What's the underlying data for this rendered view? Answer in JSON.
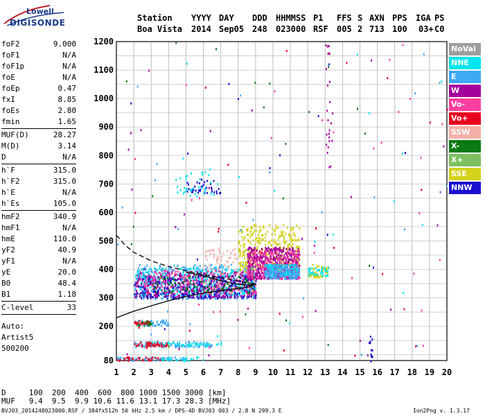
{
  "logo": {
    "line1": "Lowell",
    "line2": "DIGISONDE"
  },
  "header": {
    "labels": [
      "Station",
      "YYYY",
      "DAY",
      "DDD",
      "HHMMSS",
      "P1",
      "FFS",
      "S",
      "AXN",
      "PPS",
      "IGA",
      "PS"
    ],
    "values": [
      "Boa Vista",
      "2014",
      "Sep05",
      "248",
      "023000",
      "RSF",
      "005",
      "2",
      "713",
      "100",
      "03+",
      "C0"
    ]
  },
  "params": [
    {
      "name": "foF2",
      "value": "9.000"
    },
    {
      "name": "foF1",
      "value": "N/A"
    },
    {
      "name": "foF1p",
      "value": "N/A"
    },
    {
      "name": "foE",
      "value": "N/A"
    },
    {
      "name": "foEp",
      "value": "0.47"
    },
    {
      "name": "fxI",
      "value": "8.85"
    },
    {
      "name": "foEs",
      "value": "2.80"
    },
    {
      "name": "fmin",
      "value": "1.65"
    },
    {
      "name": "MUF(D)",
      "value": "28.27"
    },
    {
      "name": "M(D)",
      "value": "3.14"
    },
    {
      "name": "D",
      "value": "N/A"
    },
    {
      "name": "h`F",
      "value": "315.0"
    },
    {
      "name": "h`F2",
      "value": "315.0"
    },
    {
      "name": "h`E",
      "value": "N/A"
    },
    {
      "name": "h`Es",
      "value": "105.0"
    },
    {
      "name": "hmF2",
      "value": "340.9"
    },
    {
      "name": "hmF1",
      "value": "N/A"
    },
    {
      "name": "hmE",
      "value": "110.0"
    },
    {
      "name": "yF2",
      "value": "40.9"
    },
    {
      "name": "yF1",
      "value": "N/A"
    },
    {
      "name": "yE",
      "value": "20.0"
    },
    {
      "name": "B0",
      "value": "48.4"
    },
    {
      "name": "B1",
      "value": "1.18"
    },
    {
      "name": "C-level",
      "value": "33"
    }
  ],
  "autoscale": {
    "line1": "Auto:",
    "line2": "Artist5",
    "line3": "500200"
  },
  "legend": [
    {
      "label": "NoVal",
      "color": "#9e9e9e"
    },
    {
      "label": "NNE",
      "color": "#00e5ee"
    },
    {
      "label": "E",
      "color": "#3fa9f5"
    },
    {
      "label": "W",
      "color": "#a5009e"
    },
    {
      "label": "Vo-",
      "color": "#ff3fa0"
    },
    {
      "label": "Vo+",
      "color": "#e8001e"
    },
    {
      "label": "SSW",
      "color": "#f4b0a8"
    },
    {
      "label": "X-",
      "color": "#0a7a12"
    },
    {
      "label": "X+",
      "color": "#7cc060"
    },
    {
      "label": "SSE",
      "color": "#d4d21a"
    },
    {
      "label": "NNW",
      "color": "#1a10d0"
    }
  ],
  "footer": {
    "d_row": "D     100  200  400  600  800 1000 1500 3000 [km]",
    "muf_row": "MUF   9.4  9.5  9.9 10.6 11.6 13.1 17.3 28.3 [MHz]",
    "file": "BVJ03_2014248023000.RSF / 384fx512h 50 kHz 2.5 km / DPS-4D BVJ03 003 / 2.8 N 299.3 E",
    "version": "Ion2Png v. 1.3.17"
  },
  "chart_data": {
    "type": "scatter",
    "xlim": [
      1,
      20
    ],
    "ylim": [
      80,
      1200
    ],
    "x_ticks": [
      1,
      2,
      3,
      4,
      5,
      6,
      7,
      8,
      9,
      10,
      11,
      12,
      13,
      14,
      15,
      16,
      17,
      18,
      19,
      20
    ],
    "y_ticks": [
      80,
      200,
      300,
      400,
      500,
      600,
      700,
      800,
      900,
      1000,
      1100,
      1200
    ],
    "grid": true,
    "legend_position": "right",
    "profile_solid": {
      "x": [
        1.0,
        1.5,
        2.0,
        3.0,
        4.0,
        5.0,
        6.0,
        7.0,
        8.0,
        8.6,
        9.0
      ],
      "y": [
        230,
        242,
        253,
        272,
        290,
        305,
        317,
        325,
        333,
        338,
        350
      ]
    },
    "profile_dashed": {
      "x": [
        1.0,
        1.5,
        2.0,
        3.0,
        4.0,
        5.0,
        6.0,
        7.0,
        8.0,
        8.5,
        9.0
      ],
      "y": [
        520,
        485,
        460,
        430,
        410,
        395,
        382,
        370,
        360,
        353,
        350
      ]
    },
    "profile_trace": {
      "x": [
        5.0,
        6.0,
        7.0,
        8.0,
        8.6,
        9.0
      ],
      "y": [
        390,
        378,
        360,
        348,
        345,
        350
      ]
    },
    "clusters": [
      {
        "series": "E",
        "xmin": 2.0,
        "xmax": 9.0,
        "ymin": 300,
        "ymax": 420,
        "n": 520
      },
      {
        "series": "W",
        "xmin": 2.0,
        "xmax": 9.0,
        "ymin": 305,
        "ymax": 395,
        "n": 520
      },
      {
        "series": "NNE",
        "xmin": 2.0,
        "xmax": 9.0,
        "ymin": 310,
        "ymax": 410,
        "n": 260
      },
      {
        "series": "Vo-",
        "xmin": 2.5,
        "xmax": 9.0,
        "ymin": 315,
        "ymax": 400,
        "n": 180
      },
      {
        "series": "SSW",
        "xmin": 6.0,
        "xmax": 9.0,
        "ymin": 320,
        "ymax": 480,
        "n": 120
      },
      {
        "series": "NNW",
        "xmin": 2.0,
        "xmax": 9.0,
        "ymin": 300,
        "ymax": 380,
        "n": 200
      },
      {
        "series": "X-",
        "xmin": 3.0,
        "xmax": 9.0,
        "ymin": 320,
        "ymax": 380,
        "n": 80
      },
      {
        "series": "SSE",
        "xmin": 8.0,
        "xmax": 11.5,
        "ymin": 400,
        "ymax": 560,
        "n": 380
      },
      {
        "series": "W",
        "xmin": 8.5,
        "xmax": 11.5,
        "ymin": 370,
        "ymax": 480,
        "n": 520
      },
      {
        "series": "Vo-",
        "xmin": 8.5,
        "xmax": 11.5,
        "ymin": 370,
        "ymax": 470,
        "n": 200
      },
      {
        "series": "NNE",
        "xmin": 9.5,
        "xmax": 11.5,
        "ymin": 380,
        "ymax": 420,
        "n": 160
      },
      {
        "series": "E",
        "xmin": 9.5,
        "xmax": 11.5,
        "ymin": 370,
        "ymax": 420,
        "n": 140
      },
      {
        "series": "SSE",
        "xmin": 12.0,
        "xmax": 13.2,
        "ymin": 375,
        "ymax": 420,
        "n": 60
      },
      {
        "series": "NNE",
        "xmin": 12.0,
        "xmax": 13.2,
        "ymin": 380,
        "ymax": 410,
        "n": 40
      },
      {
        "series": "NNW",
        "xmin": 5.0,
        "xmax": 7.0,
        "ymin": 670,
        "ymax": 720,
        "n": 40
      },
      {
        "series": "NNE",
        "xmin": 4.3,
        "xmax": 6.8,
        "ymin": 660,
        "ymax": 760,
        "n": 35
      },
      {
        "series": "E",
        "xmin": 2.0,
        "xmax": 4.0,
        "ymin": 205,
        "ymax": 225,
        "n": 50
      },
      {
        "series": "Vo+",
        "xmin": 2.0,
        "xmax": 2.9,
        "ymin": 210,
        "ymax": 222,
        "n": 30
      },
      {
        "series": "X-",
        "xmin": 2.0,
        "xmax": 3.0,
        "ymin": 205,
        "ymax": 222,
        "n": 15
      },
      {
        "series": "E",
        "xmin": 2.0,
        "xmax": 6.5,
        "ymin": 130,
        "ymax": 150,
        "n": 100
      },
      {
        "series": "Vo+",
        "xmin": 2.0,
        "xmax": 4.0,
        "ymin": 132,
        "ymax": 148,
        "n": 45
      },
      {
        "series": "NNE",
        "xmin": 3.0,
        "xmax": 7.0,
        "ymin": 132,
        "ymax": 148,
        "n": 40
      },
      {
        "series": "E",
        "xmin": 1.0,
        "xmax": 5.0,
        "ymin": 82,
        "ymax": 95,
        "n": 60
      },
      {
        "series": "Vo+",
        "xmin": 1.0,
        "xmax": 3.5,
        "ymin": 82,
        "ymax": 95,
        "n": 30
      },
      {
        "series": "NNE",
        "xmin": 3.0,
        "xmax": 6.0,
        "ymin": 82,
        "ymax": 95,
        "n": 25
      },
      {
        "series": "Vo-",
        "xmin": 1.0,
        "xmax": 20.0,
        "ymin": 100,
        "ymax": 1200,
        "n": 30
      },
      {
        "series": "Vo+",
        "xmin": 1.0,
        "xmax": 20.0,
        "ymin": 100,
        "ymax": 1200,
        "n": 25
      },
      {
        "series": "W",
        "xmin": 1.0,
        "xmax": 20.0,
        "ymin": 100,
        "ymax": 1200,
        "n": 30
      },
      {
        "series": "E",
        "xmin": 1.0,
        "xmax": 20.0,
        "ymin": 100,
        "ymax": 1200,
        "n": 25
      },
      {
        "series": "X-",
        "xmin": 1.0,
        "xmax": 20.0,
        "ymin": 100,
        "ymax": 1200,
        "n": 20
      },
      {
        "series": "NNW",
        "xmin": 1.0,
        "xmax": 20.0,
        "ymin": 100,
        "ymax": 1200,
        "n": 15
      },
      {
        "series": "NNE",
        "xmin": 1.0,
        "xmax": 20.0,
        "ymin": 100,
        "ymax": 1200,
        "n": 15
      },
      {
        "series": "W",
        "xmin": 13.0,
        "xmax": 13.4,
        "ymin": 700,
        "ymax": 1200,
        "n": 25
      },
      {
        "series": "NNW",
        "xmin": 15.5,
        "xmax": 15.7,
        "ymin": 80,
        "ymax": 175,
        "n": 12
      }
    ]
  }
}
